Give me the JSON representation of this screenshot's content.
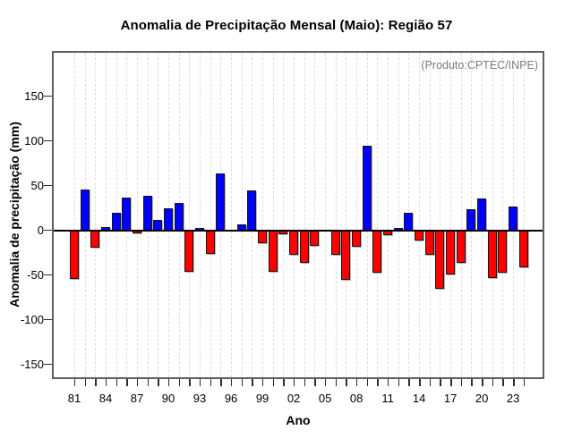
{
  "title": "Anomalia de Precipitação Mensal (Maio): Região 57",
  "annotation": "(Produto:CPTEC/INPE)",
  "axis_titles": {
    "x": "Ano",
    "y": "Anomalia de precipitação (mm)"
  },
  "chart_data": {
    "type": "bar",
    "title": "Anomalia de Precipitação Mensal (Maio): Região 57",
    "xlabel": "Ano",
    "ylabel": "Anomalia de precipitação (mm)",
    "annotation": "(Produto:CPTEC/INPE)",
    "grid": "vertical-dashed",
    "legend": "none",
    "ylim": [
      -166,
      200
    ],
    "y_ticks": [
      -150,
      -100,
      -50,
      0,
      50,
      100,
      150
    ],
    "x_tick_label_step": 3,
    "x_tick_labels": [
      "81",
      "84",
      "87",
      "90",
      "93",
      "96",
      "99",
      "02",
      "05",
      "08",
      "11",
      "14",
      "17",
      "20",
      "23"
    ],
    "years": [
      1981,
      1982,
      1983,
      1984,
      1985,
      1986,
      1987,
      1988,
      1989,
      1990,
      1991,
      1992,
      1993,
      1994,
      1995,
      1996,
      1997,
      1998,
      1999,
      2000,
      2001,
      2002,
      2003,
      2004,
      2005,
      2006,
      2007,
      2008,
      2009,
      2010,
      2011,
      2012,
      2013,
      2014,
      2015,
      2016,
      2017,
      2018,
      2019,
      2020,
      2021,
      2022,
      2023,
      2024
    ],
    "values": [
      -54,
      46,
      -19,
      4,
      20,
      37,
      -3,
      39,
      12,
      25,
      31,
      -46,
      3,
      -26,
      64,
      0,
      7,
      45,
      -14,
      -46,
      -4,
      -27,
      -36,
      -17,
      0,
      -27,
      -55,
      -18,
      95,
      -47,
      -5,
      3,
      20,
      -11,
      -27,
      -65,
      -49,
      -36,
      24,
      36,
      -53,
      -47,
      27,
      -41
    ],
    "colors": {
      "positive": "#0000ff",
      "negative": "#ff0000",
      "bar_border": "#161616",
      "grid": "#dedede",
      "annotation_text": "#7d7d7d"
    }
  }
}
